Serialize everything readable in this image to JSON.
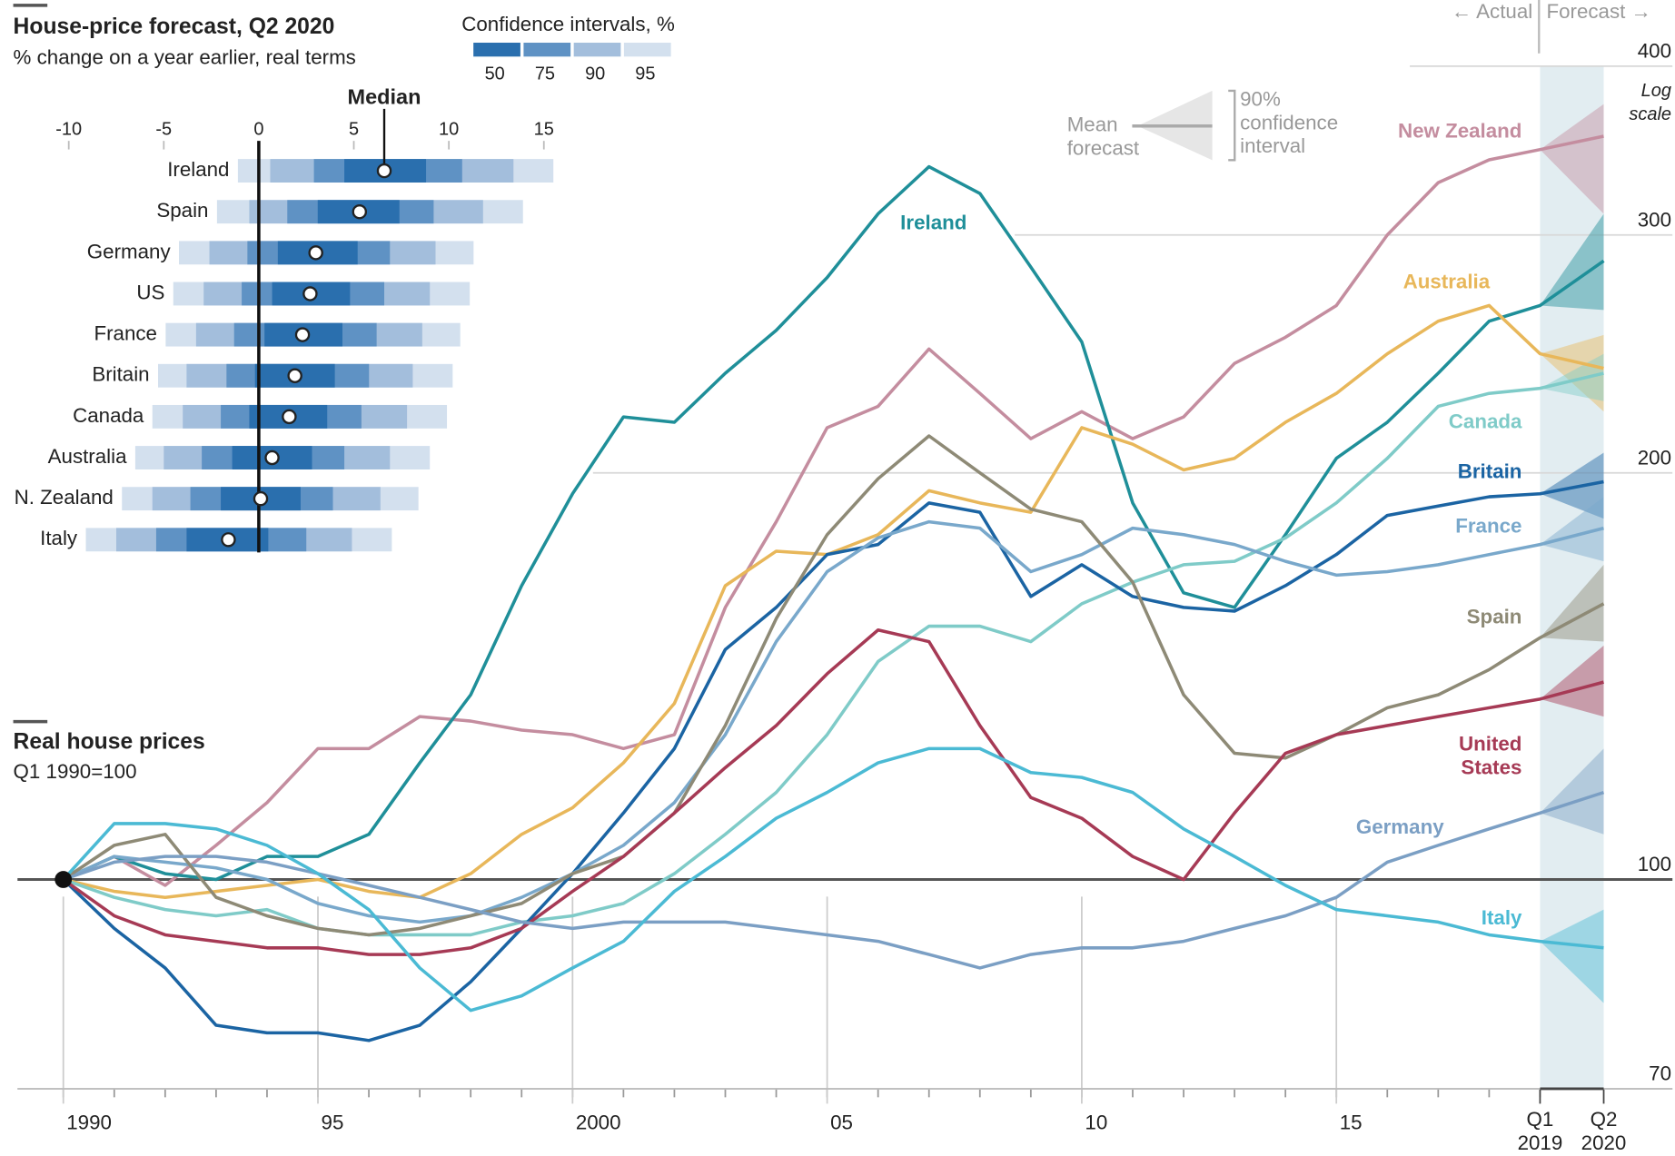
{
  "chart_data": [
    {
      "type": "interval",
      "title": "House-price forecast, Q2 2020",
      "subtitle": "% change on a year earlier, real terms",
      "legend_title": "Confidence intervals, %",
      "median_label": "Median",
      "categories": [
        "Ireland",
        "Spain",
        "Germany",
        "US",
        "France",
        "Britain",
        "Canada",
        "Australia",
        "N. Zealand",
        "Italy"
      ],
      "xlim": [
        -10,
        15
      ],
      "xticks": [
        -10,
        -5,
        0,
        5,
        10,
        15
      ],
      "median": [
        6.6,
        5.3,
        3.0,
        2.7,
        2.3,
        1.9,
        1.6,
        0.7,
        0.1,
        -1.6
      ],
      "series": [
        {
          "name": "50",
          "color": "#2a6fae",
          "low": [
            4.5,
            3.1,
            1.0,
            0.7,
            0.3,
            -0.2,
            -0.5,
            -1.4,
            -2.0,
            -3.8
          ],
          "high": [
            8.8,
            7.4,
            5.2,
            4.8,
            4.4,
            4.0,
            3.6,
            2.8,
            2.2,
            0.5
          ]
        },
        {
          "name": "75",
          "color": "#5f92c4",
          "low": [
            2.9,
            1.5,
            -0.6,
            -0.9,
            -1.3,
            -1.7,
            -2.0,
            -3.0,
            -3.6,
            -5.4
          ],
          "high": [
            10.7,
            9.2,
            6.9,
            6.6,
            6.2,
            5.8,
            5.4,
            4.5,
            3.9,
            2.5
          ]
        },
        {
          "name": "90",
          "color": "#a3bedc",
          "low": [
            0.6,
            -0.5,
            -2.6,
            -2.9,
            -3.3,
            -3.8,
            -4.0,
            -5.0,
            -5.6,
            -7.5
          ],
          "high": [
            13.4,
            11.8,
            9.3,
            9.0,
            8.6,
            8.1,
            7.8,
            6.9,
            6.4,
            4.9
          ]
        },
        {
          "name": "95",
          "color": "#d3e0ee",
          "low": [
            -1.1,
            -2.2,
            -4.2,
            -4.5,
            -4.9,
            -5.3,
            -5.6,
            -6.5,
            -7.2,
            -9.1
          ],
          "high": [
            15.5,
            13.9,
            11.3,
            11.1,
            10.6,
            10.2,
            9.9,
            9.0,
            8.4,
            7.0
          ]
        }
      ]
    },
    {
      "type": "line",
      "title": "Real house prices",
      "subtitle": "Q1 1990=100",
      "log_scale": true,
      "scale_label": "Log scale",
      "actual_label": "← Actual",
      "forecast_label": "Forecast →",
      "mean_label": "Mean forecast",
      "ci_label": "90% confidence interval",
      "x": [
        1990,
        1991,
        1992,
        1993,
        1994,
        1995,
        1996,
        1997,
        1998,
        1999,
        2000,
        2001,
        2002,
        2003,
        2004,
        2005,
        2006,
        2007,
        2008,
        2009,
        2010,
        2011,
        2012,
        2013,
        2014,
        2015,
        2016,
        2017,
        2018,
        2019,
        2020.25
      ],
      "xlim": [
        1989.1,
        2021.6
      ],
      "xticks": [
        1990,
        {
          "value": 1995,
          "label": "95"
        },
        2000,
        {
          "value": 2005,
          "label": "05"
        },
        {
          "value": 2010,
          "label": "10"
        },
        {
          "value": 2015,
          "label": "15"
        },
        {
          "value": 2019,
          "label": "Q1 2019"
        },
        {
          "value": 2020.25,
          "label": "Q2 2020"
        }
      ],
      "ylim": [
        70,
        400
      ],
      "yticks": [
        70,
        100,
        200,
        300,
        400
      ],
      "series": [
        {
          "name": "New Zealand",
          "color": "#c48d9f",
          "values": [
            100,
            104,
            99,
            106,
            114,
            125,
            125,
            132,
            131,
            129,
            128,
            125,
            128,
            159,
            184,
            216,
            224,
            247,
            229,
            212,
            222,
            212,
            220,
            241,
            252,
            266,
            300,
            328,
            341,
            347,
            355
          ],
          "ci": [
            311,
            375
          ]
        },
        {
          "name": "Ireland",
          "color": "#1f8f99",
          "values": [
            100,
            104,
            101,
            100,
            104,
            104,
            108,
            122,
            137,
            165,
            193,
            220,
            218,
            237,
            255,
            279,
            311,
            337,
            322,
            284,
            250,
            190,
            163,
            159,
            180,
            205,
            218,
            237,
            259,
            266,
            287
          ],
          "ci": [
            264,
            311
          ]
        },
        {
          "name": "Australia",
          "color": "#e8b75a",
          "values": [
            100,
            98,
            97,
            98,
            99,
            100,
            98,
            97,
            101,
            108,
            113,
            122,
            135,
            165,
            175,
            174,
            180,
            194,
            190,
            187,
            216,
            210,
            201,
            205,
            218,
            229,
            245,
            259,
            266,
            245,
            239
          ],
          "ci": [
            222,
            253
          ]
        },
        {
          "name": "Canada",
          "color": "#7fcbc8",
          "values": [
            100,
            97,
            95,
            94,
            95,
            92,
            91,
            91,
            91,
            93,
            94,
            96,
            101,
            108,
            116,
            128,
            145,
            154,
            154,
            150,
            160,
            166,
            171,
            172,
            179,
            190,
            205,
            224,
            229,
            231,
            237
          ],
          "ci": [
            226,
            245
          ]
        },
        {
          "name": "Britain",
          "color": "#1b64a3",
          "values": [
            100,
            92,
            86,
            78,
            77,
            77,
            76,
            78,
            84,
            92,
            101,
            112,
            125,
            148,
            159,
            174,
            177,
            190,
            187,
            162,
            171,
            162,
            159,
            158,
            165,
            174,
            186,
            189,
            192,
            193,
            197
          ],
          "ci": [
            185,
            207
          ]
        },
        {
          "name": "France",
          "color": "#79a8cb",
          "values": [
            100,
            104,
            103,
            102,
            100,
            96,
            94,
            93,
            94,
            97,
            101,
            106,
            114,
            128,
            150,
            169,
            179,
            184,
            182,
            169,
            174,
            182,
            180,
            177,
            172,
            168,
            169,
            171,
            174,
            177,
            182
          ],
          "ci": [
            172,
            192
          ]
        },
        {
          "name": "Spain",
          "color": "#8e8a76",
          "values": [
            100,
            106,
            108,
            97,
            94,
            92,
            91,
            92,
            94,
            96,
            101,
            104,
            112,
            130,
            156,
            180,
            198,
            213,
            200,
            188,
            184,
            166,
            137,
            124,
            123,
            128,
            134,
            137,
            143,
            151,
            160
          ],
          "ci": [
            150,
            171
          ]
        },
        {
          "name": "United States",
          "color": "#a63a55",
          "values": [
            100,
            94,
            91,
            90,
            89,
            89,
            88,
            88,
            89,
            92,
            98,
            104,
            112,
            121,
            130,
            142,
            153,
            150,
            130,
            115,
            111,
            104,
            100,
            112,
            124,
            128,
            130,
            132,
            134,
            136,
            140
          ],
          "ci": [
            132,
            149
          ]
        },
        {
          "name": "Germany",
          "color": "#7b9fc4",
          "values": [
            100,
            103,
            104,
            104,
            103,
            101,
            99,
            97,
            95,
            93,
            92,
            93,
            93,
            93,
            92,
            91,
            90,
            88,
            86,
            88,
            89,
            89,
            90,
            92,
            94,
            97,
            103,
            106,
            109,
            112,
            116
          ],
          "ci": [
            108,
            125
          ]
        },
        {
          "name": "Italy",
          "color": "#4bbad4",
          "values": [
            100,
            110,
            110,
            109,
            106,
            101,
            95,
            86,
            80,
            82,
            86,
            90,
            98,
            104,
            111,
            116,
            122,
            125,
            125,
            120,
            119,
            116,
            109,
            104,
            99,
            95,
            94,
            93,
            91,
            90,
            89
          ],
          "ci": [
            81,
            95
          ]
        }
      ]
    }
  ]
}
